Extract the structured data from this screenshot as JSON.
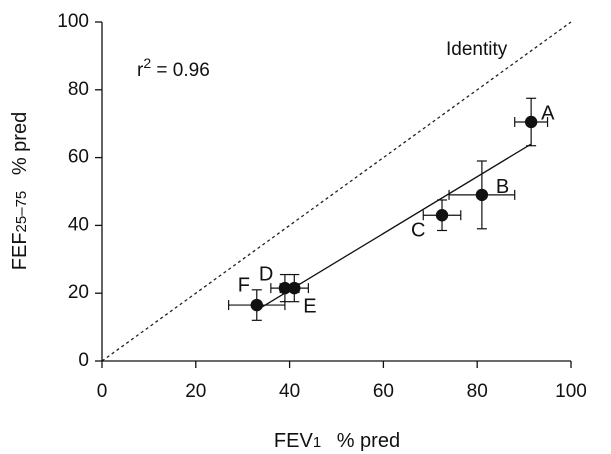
{
  "chart_data": {
    "type": "scatter",
    "xlabel_main": "FEV",
    "xlabel_sub": "1",
    "xlabel_suffix": "% pred",
    "ylabel_main": "FEF",
    "ylabel_sub": "25–75",
    "ylabel_suffix": "% pred",
    "xlim": [
      0,
      100
    ],
    "ylim": [
      0,
      100
    ],
    "xticks": [
      0,
      20,
      40,
      60,
      80,
      100
    ],
    "yticks": [
      0,
      20,
      40,
      60,
      80,
      100
    ],
    "xtick_labels": [
      "0",
      "20",
      "40",
      "60",
      "80",
      "100"
    ],
    "ytick_labels": [
      "0",
      "20",
      "40",
      "60",
      "80",
      "100"
    ],
    "grid": false,
    "r2_label_main": "r",
    "r2_label_sup": "2",
    "r2_label_value": " = 0.96",
    "identity_label": "Identity",
    "identity_line": {
      "x": [
        0,
        100
      ],
      "y": [
        0,
        100
      ],
      "style": "dashed"
    },
    "regression_line": {
      "x": [
        33,
        91.5
      ],
      "y": [
        15,
        64
      ],
      "style": "solid"
    },
    "points": [
      {
        "label": "A",
        "x": 91.5,
        "y": 70.5,
        "xerr": 3.5,
        "yerr": 7
      },
      {
        "label": "B",
        "x": 81,
        "y": 49,
        "xerr": 7,
        "yerr": 10
      },
      {
        "label": "C",
        "x": 72.5,
        "y": 43,
        "xerr": 4,
        "yerr": 4.5
      },
      {
        "label": "D",
        "x": 39,
        "y": 21.5,
        "xerr": 3,
        "yerr": 4
      },
      {
        "label": "E",
        "x": 41,
        "y": 21.5,
        "xerr": 3,
        "yerr": 4
      },
      {
        "label": "F",
        "x": 33,
        "y": 16.5,
        "xerr": 6,
        "yerr": 4.5
      }
    ]
  }
}
